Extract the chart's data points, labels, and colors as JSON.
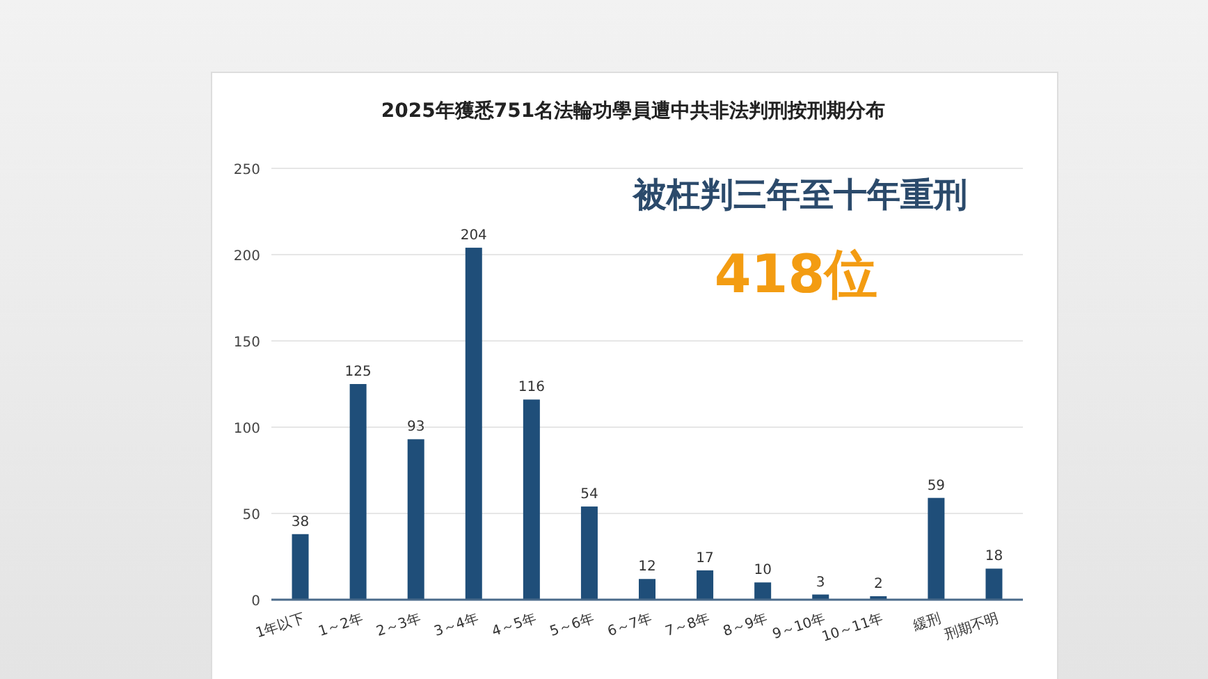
{
  "chart_data": {
    "type": "bar",
    "title": "2025年獲悉751名法輪功學員遭中共非法判刑按刑期分布",
    "categories": [
      "1年以下",
      "1～2年",
      "2～3年",
      "3～4年",
      "4～5年",
      "5～6年",
      "6～7年",
      "7～8年",
      "8～9年",
      "9～10年",
      "10～11年",
      "緩刑",
      "刑期不明"
    ],
    "values": [
      38,
      125,
      93,
      204,
      116,
      54,
      12,
      17,
      10,
      3,
      2,
      59,
      18
    ],
    "color": "#1f4e79",
    "ylim": [
      0,
      250
    ],
    "yticks": [
      0,
      50,
      100,
      150,
      200,
      250
    ],
    "grid": "y",
    "data_labels": true,
    "annotations": [
      "被枉判三年至十年重刑",
      "418位"
    ]
  }
}
